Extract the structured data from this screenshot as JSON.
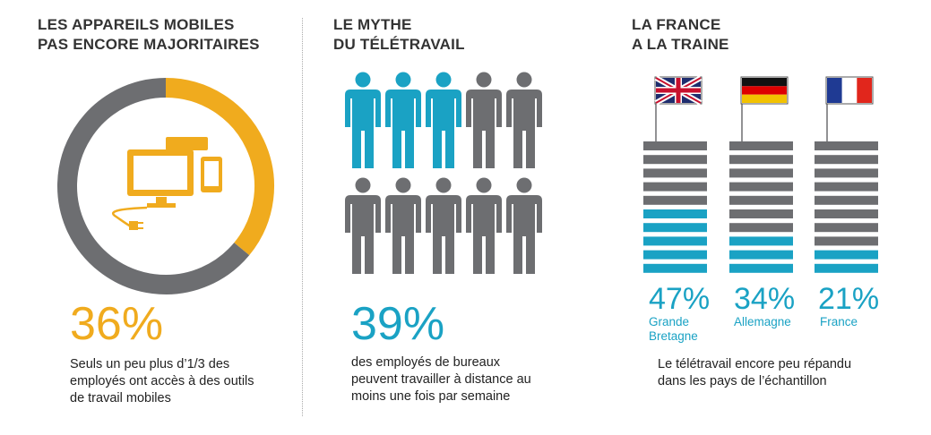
{
  "colors": {
    "orange": "#f0ab1e",
    "gray": "#6d6e71",
    "teal": "#1aa2c4",
    "title": "#333333",
    "text": "#222222"
  },
  "panel1": {
    "title_line1": "LES APPAREILS MOBILES",
    "title_line2": "PAS ENCORE MAJORITAIRES",
    "value_label": "36%",
    "description_line1": "Seuls un peu plus d’1/3 des",
    "description_line2": "employés ont accès à des outils",
    "description_line3": "de travail mobiles",
    "icon": "devices-icon"
  },
  "panel2": {
    "title_line1": "LE MYTHE",
    "title_line2": "DU TÉLÉTRAVAIL",
    "value_label": "39%",
    "description_line1": "des employés de bureaux",
    "description_line2": "peuvent travailler à distance au",
    "description_line3": "moins une fois par semaine",
    "icon": "person-icon"
  },
  "panel3": {
    "title_line1": "LA FRANCE",
    "title_line2": "A LA TRAINE",
    "description_line1": "Le télétravail encore peu répandu",
    "description_line2": "dans les pays de l’échantillon",
    "countries": [
      {
        "pct_label": "47%",
        "name_line1": "Grande",
        "name_line2": "Bretagne",
        "flag": "uk-flag-icon"
      },
      {
        "pct_label": "34%",
        "name_line1": "Allemagne",
        "name_line2": "",
        "flag": "germany-flag-icon"
      },
      {
        "pct_label": "21%",
        "name_line1": "France",
        "name_line2": "",
        "flag": "france-flag-icon"
      }
    ]
  },
  "chart_data": [
    {
      "type": "pie",
      "variant": "donut",
      "slices": [
        {
          "label": "Accès à des outils de travail mobiles",
          "value": 36,
          "color": "#f0ab1e"
        },
        {
          "label": "",
          "value": 64,
          "color": "#6d6e71"
        }
      ]
    },
    {
      "type": "pictogram",
      "total_icons": 10,
      "value": 39,
      "unit": "%",
      "filled_color": "#1aa2c4",
      "empty_color": "#6d6e71"
    },
    {
      "type": "bar",
      "categories": [
        "Grande Bretagne",
        "Allemagne",
        "France"
      ],
      "values": [
        47,
        34,
        21
      ],
      "unit": "%",
      "ylim": [
        0,
        100
      ],
      "segments_per_bar": 10,
      "filled_color": "#1aa2c4",
      "empty_color": "#6d6e71"
    }
  ]
}
